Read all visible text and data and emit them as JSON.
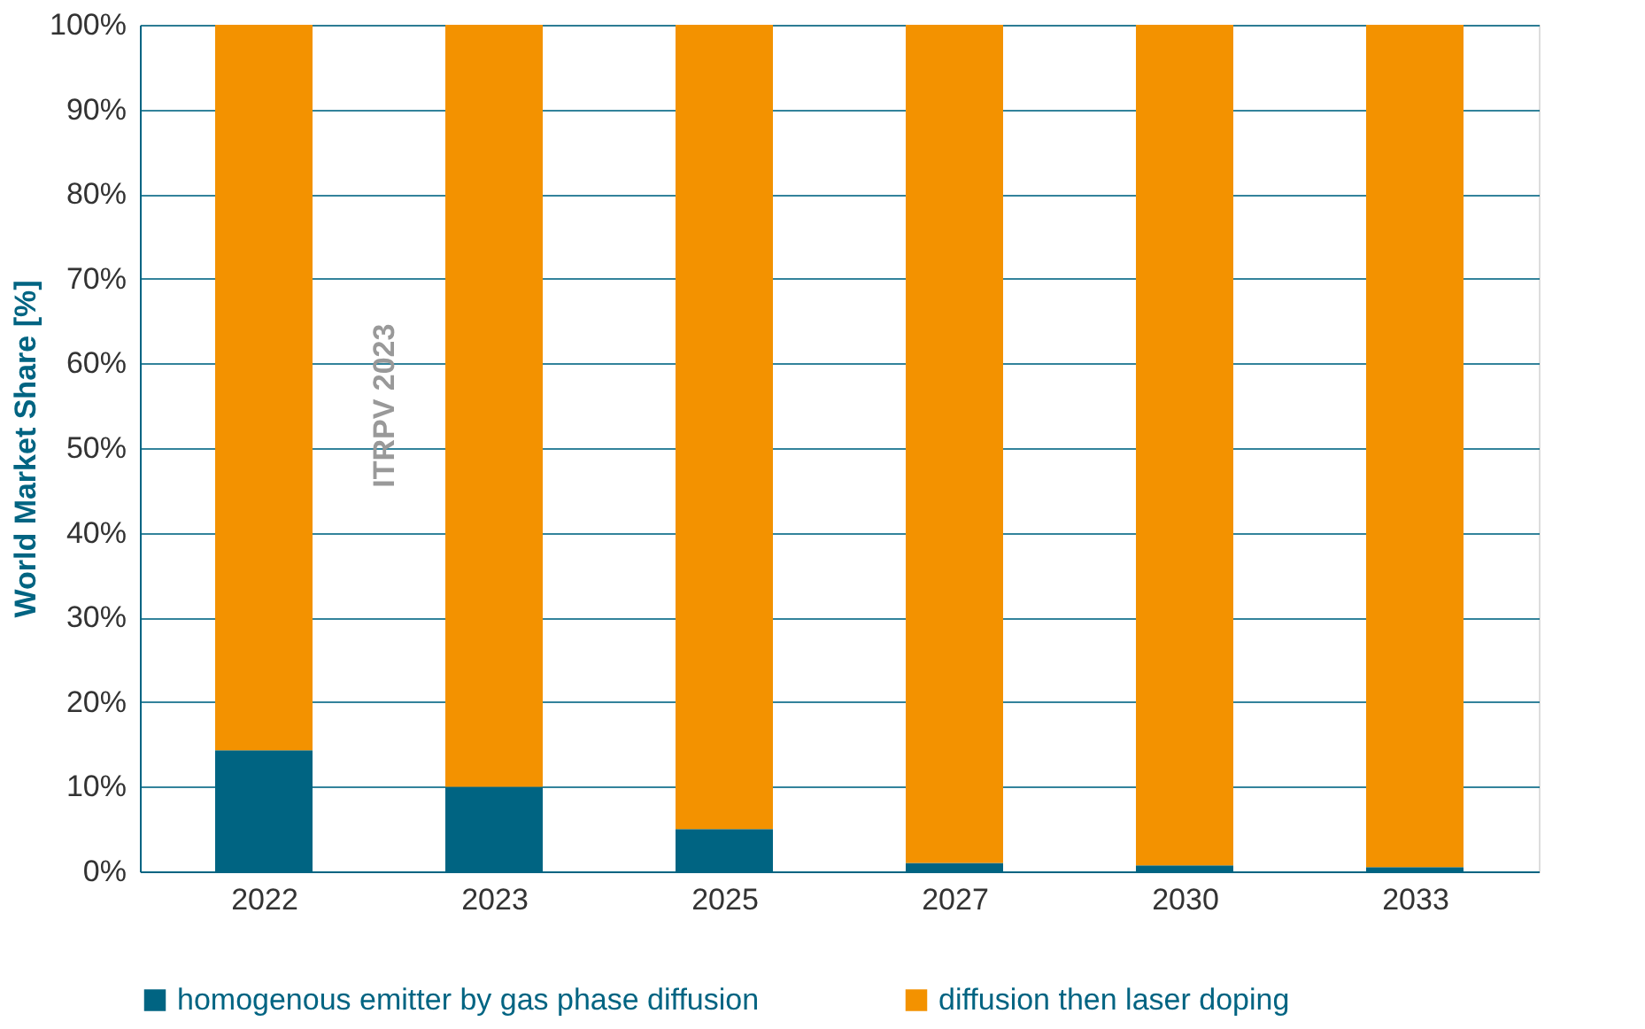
{
  "chart_data": {
    "type": "bar",
    "stacked": true,
    "ylabel": "World Market Share [%]",
    "categories": [
      "2022",
      "2023",
      "2025",
      "2027",
      "2030",
      "2033"
    ],
    "series": [
      {
        "name": "homogenous emitter by gas phase diffusion",
        "color": "#006482",
        "values": [
          14.3,
          10,
          5,
          1,
          0.7,
          0.5
        ]
      },
      {
        "name": "diffusion then laser doping",
        "color": "#f39200",
        "values": [
          85.7,
          90,
          95,
          99,
          99.3,
          99.5
        ]
      }
    ],
    "ylim": [
      0,
      100
    ],
    "yticks": [
      {
        "value": 0,
        "label": "0%"
      },
      {
        "value": 10,
        "label": "10%"
      },
      {
        "value": 20,
        "label": "20%"
      },
      {
        "value": 30,
        "label": "30%"
      },
      {
        "value": 40,
        "label": "40%"
      },
      {
        "value": 50,
        "label": "50%"
      },
      {
        "value": 60,
        "label": "60%"
      },
      {
        "value": 70,
        "label": "70%"
      },
      {
        "value": 80,
        "label": "80%"
      },
      {
        "value": 90,
        "label": "90%"
      },
      {
        "value": 100,
        "label": "100%"
      }
    ],
    "grid": "y",
    "legend": "bottom",
    "annotations": [
      "ITRPV 2023"
    ]
  }
}
